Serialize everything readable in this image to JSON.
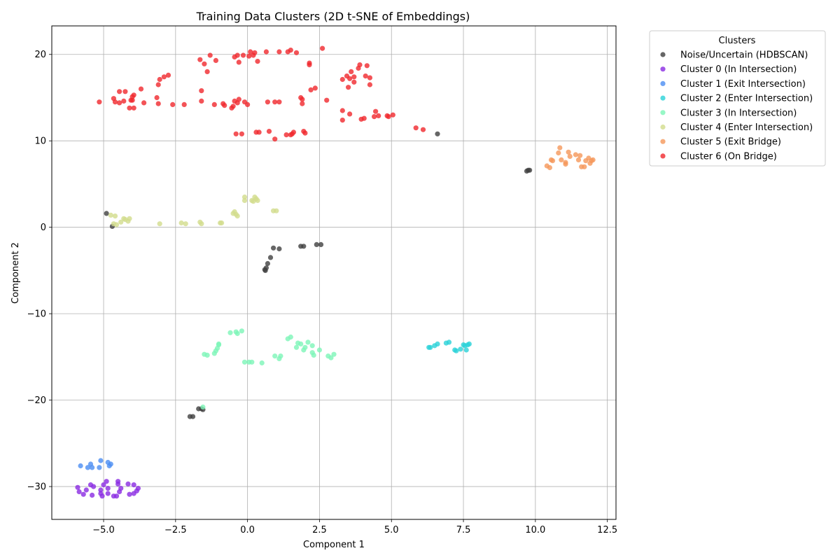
{
  "chart_data": {
    "type": "scatter",
    "title": "Training Data Clusters (2D t-SNE of Embeddings)",
    "xlabel": "Component 1",
    "ylabel": "Component 2",
    "xlim": [
      -6.8,
      12.8
    ],
    "ylim": [
      -33.8,
      23.3
    ],
    "x_ticks": [
      -5.0,
      -2.5,
      0.0,
      2.5,
      5.0,
      7.5,
      10.0,
      12.5
    ],
    "x_tick_labels": [
      "−5.0",
      "−2.5",
      "0.0",
      "2.5",
      "5.0",
      "7.5",
      "10.0",
      "12.5"
    ],
    "y_ticks": [
      -30,
      -20,
      -10,
      0,
      10,
      20
    ],
    "y_tick_labels": [
      "−30",
      "−20",
      "−10",
      "0",
      "10",
      "20"
    ],
    "grid": true,
    "legend": {
      "title": "Clusters",
      "placement": "outside-right-top"
    },
    "series": [
      {
        "name": "Noise/Uncertain (HDBSCAN)",
        "color": "#404040",
        "points": [
          [
            -4.9,
            1.6
          ],
          [
            -4.7,
            0.1
          ],
          [
            9.7,
            6.5
          ],
          [
            9.75,
            6.6
          ],
          [
            9.8,
            6.6
          ],
          [
            6.6,
            10.8
          ],
          [
            0.9,
            -2.4
          ],
          [
            1.1,
            -2.5
          ],
          [
            1.85,
            -2.2
          ],
          [
            1.95,
            -2.2
          ],
          [
            2.4,
            -2.0
          ],
          [
            2.55,
            -2.0
          ],
          [
            0.8,
            -3.5
          ],
          [
            0.7,
            -4.2
          ],
          [
            0.65,
            -4.7
          ],
          [
            0.62,
            -5.0
          ],
          [
            0.6,
            -4.9
          ],
          [
            -1.7,
            -21.0
          ],
          [
            -1.6,
            -21.0
          ],
          [
            -1.55,
            -21.1
          ],
          [
            -2.0,
            -21.9
          ],
          [
            -1.9,
            -21.9
          ]
        ]
      },
      {
        "name": "Cluster 0 (In Intersection)",
        "color": "#8a2be2",
        "points": [
          [
            -5.9,
            -30.1
          ],
          [
            -5.85,
            -30.6
          ],
          [
            -5.7,
            -30.9
          ],
          [
            -5.6,
            -30.4
          ],
          [
            -5.45,
            -29.8
          ],
          [
            -5.4,
            -31.0
          ],
          [
            -5.35,
            -30.0
          ],
          [
            -5.1,
            -30.4
          ],
          [
            -5.1,
            -30.8
          ],
          [
            -5.05,
            -31.1
          ],
          [
            -5.0,
            -29.8
          ],
          [
            -4.9,
            -29.4
          ],
          [
            -4.85,
            -30.8
          ],
          [
            -4.85,
            -30.2
          ],
          [
            -4.65,
            -31.1
          ],
          [
            -4.55,
            -31.1
          ],
          [
            -4.5,
            -29.4
          ],
          [
            -4.5,
            -29.7
          ],
          [
            -4.45,
            -30.6
          ],
          [
            -4.4,
            -30.2
          ],
          [
            -4.15,
            -29.7
          ],
          [
            -4.1,
            -30.9
          ],
          [
            -3.95,
            -29.8
          ],
          [
            -3.95,
            -30.8
          ],
          [
            -3.85,
            -30.5
          ],
          [
            -3.8,
            -30.2
          ]
        ]
      },
      {
        "name": "Cluster 1 (Exit Intersection)",
        "color": "#4b8df2",
        "points": [
          [
            -5.8,
            -27.6
          ],
          [
            -5.55,
            -27.8
          ],
          [
            -5.45,
            -27.4
          ],
          [
            -5.4,
            -27.8
          ],
          [
            -5.15,
            -27.8
          ],
          [
            -5.1,
            -27.0
          ],
          [
            -4.85,
            -27.2
          ],
          [
            -4.8,
            -27.6
          ],
          [
            -4.75,
            -27.4
          ]
        ]
      },
      {
        "name": "Cluster 2 (Enter Intersection)",
        "color": "#2ad2d8",
        "points": [
          [
            6.3,
            -13.9
          ],
          [
            6.35,
            -13.9
          ],
          [
            6.5,
            -13.7
          ],
          [
            6.6,
            -13.5
          ],
          [
            6.9,
            -13.4
          ],
          [
            7.0,
            -13.3
          ],
          [
            7.2,
            -14.2
          ],
          [
            7.25,
            -14.3
          ],
          [
            7.4,
            -14.1
          ],
          [
            7.5,
            -13.6
          ],
          [
            7.55,
            -13.7
          ],
          [
            7.6,
            -14.2
          ],
          [
            7.65,
            -13.6
          ],
          [
            7.7,
            -13.5
          ]
        ]
      },
      {
        "name": "Cluster 3 (In Intersection)",
        "color": "#7df5b8",
        "points": [
          [
            -0.6,
            -12.2
          ],
          [
            -0.4,
            -12.1
          ],
          [
            -0.35,
            -12.3
          ],
          [
            -0.2,
            -12.0
          ],
          [
            -1.0,
            -13.6
          ],
          [
            -1.0,
            -13.5
          ],
          [
            -1.05,
            -14.0
          ],
          [
            -1.1,
            -14.3
          ],
          [
            -1.15,
            -14.6
          ],
          [
            -1.4,
            -14.8
          ],
          [
            -1.5,
            -14.7
          ],
          [
            -0.1,
            -15.6
          ],
          [
            0.05,
            -15.6
          ],
          [
            0.15,
            -15.6
          ],
          [
            0.5,
            -15.7
          ],
          [
            0.95,
            -14.9
          ],
          [
            1.1,
            -15.2
          ],
          [
            1.15,
            -14.9
          ],
          [
            1.4,
            -12.9
          ],
          [
            1.5,
            -12.7
          ],
          [
            1.7,
            -13.9
          ],
          [
            1.75,
            -13.4
          ],
          [
            1.85,
            -13.5
          ],
          [
            1.95,
            -14.2
          ],
          [
            2.0,
            -13.9
          ],
          [
            2.1,
            -13.3
          ],
          [
            2.25,
            -13.7
          ],
          [
            2.25,
            -14.5
          ],
          [
            2.3,
            -14.8
          ],
          [
            2.5,
            -14.2
          ],
          [
            2.8,
            -14.9
          ],
          [
            2.9,
            -15.1
          ],
          [
            3.0,
            -14.7
          ],
          [
            -1.55,
            -20.8
          ]
        ]
      },
      {
        "name": "Cluster 4 (Enter Intersection)",
        "color": "#d2dc8c",
        "points": [
          [
            -4.75,
            1.4
          ],
          [
            -4.6,
            1.3
          ],
          [
            -4.65,
            0.4
          ],
          [
            -4.55,
            0.3
          ],
          [
            -4.4,
            0.6
          ],
          [
            -4.3,
            1.0
          ],
          [
            -4.25,
            0.9
          ],
          [
            -4.15,
            0.7
          ],
          [
            -4.1,
            1.0
          ],
          [
            -3.05,
            0.4
          ],
          [
            -2.3,
            0.5
          ],
          [
            -2.15,
            0.4
          ],
          [
            -1.65,
            0.6
          ],
          [
            -1.6,
            0.4
          ],
          [
            -0.95,
            0.5
          ],
          [
            -0.9,
            0.5
          ],
          [
            -0.5,
            1.6
          ],
          [
            -0.45,
            1.8
          ],
          [
            -0.4,
            1.5
          ],
          [
            -0.35,
            1.3
          ],
          [
            -0.1,
            3.1
          ],
          [
            -0.1,
            3.5
          ],
          [
            0.15,
            3.1
          ],
          [
            0.2,
            3.0
          ],
          [
            0.25,
            3.5
          ],
          [
            0.3,
            3.3
          ],
          [
            0.35,
            3.1
          ],
          [
            0.9,
            1.9
          ],
          [
            1.0,
            1.9
          ]
        ]
      },
      {
        "name": "Cluster 5 (Exit Bridge)",
        "color": "#f5975a",
        "points": [
          [
            10.4,
            7.1
          ],
          [
            10.5,
            6.9
          ],
          [
            10.55,
            7.8
          ],
          [
            10.6,
            7.7
          ],
          [
            10.8,
            8.6
          ],
          [
            10.85,
            9.2
          ],
          [
            10.9,
            7.8
          ],
          [
            11.05,
            7.5
          ],
          [
            11.05,
            7.3
          ],
          [
            11.15,
            8.7
          ],
          [
            11.2,
            8.2
          ],
          [
            11.4,
            8.4
          ],
          [
            11.5,
            7.8
          ],
          [
            11.55,
            8.3
          ],
          [
            11.6,
            7.0
          ],
          [
            11.7,
            7.0
          ],
          [
            11.75,
            7.7
          ],
          [
            11.85,
            8.0
          ],
          [
            11.9,
            7.4
          ],
          [
            11.95,
            7.7
          ],
          [
            12.0,
            7.8
          ]
        ]
      },
      {
        "name": "Cluster 6 (On Bridge)",
        "color": "#f0282d",
        "points": [
          [
            -5.15,
            14.5
          ],
          [
            -4.65,
            14.9
          ],
          [
            -4.6,
            14.5
          ],
          [
            -4.45,
            14.4
          ],
          [
            -4.45,
            15.7
          ],
          [
            -4.3,
            14.6
          ],
          [
            -4.25,
            15.7
          ],
          [
            -4.1,
            13.8
          ],
          [
            -4.05,
            14.7
          ],
          [
            -4.0,
            14.7
          ],
          [
            -4.0,
            15.1
          ],
          [
            -3.95,
            15.3
          ],
          [
            -3.95,
            13.8
          ],
          [
            -3.7,
            16.0
          ],
          [
            -3.6,
            14.4
          ],
          [
            -3.15,
            15.0
          ],
          [
            -3.1,
            16.5
          ],
          [
            -3.1,
            14.3
          ],
          [
            -3.05,
            17.1
          ],
          [
            -2.9,
            17.4
          ],
          [
            -2.75,
            17.6
          ],
          [
            -2.6,
            14.2
          ],
          [
            -2.2,
            14.2
          ],
          [
            -1.65,
            19.4
          ],
          [
            -1.6,
            15.8
          ],
          [
            -1.6,
            14.6
          ],
          [
            -1.5,
            18.9
          ],
          [
            -1.4,
            18.0
          ],
          [
            -1.3,
            19.9
          ],
          [
            -1.15,
            14.2
          ],
          [
            -1.1,
            19.3
          ],
          [
            -0.85,
            14.3
          ],
          [
            -0.8,
            14.1
          ],
          [
            -0.55,
            13.8
          ],
          [
            -0.5,
            14.0
          ],
          [
            -0.45,
            14.6
          ],
          [
            -0.45,
            19.7
          ],
          [
            -0.4,
            10.8
          ],
          [
            -0.35,
            19.9
          ],
          [
            -0.35,
            14.4
          ],
          [
            -0.3,
            14.8
          ],
          [
            -0.3,
            19.1
          ],
          [
            -0.2,
            10.8
          ],
          [
            -0.15,
            19.9
          ],
          [
            -0.1,
            14.5
          ],
          [
            0.0,
            14.2
          ],
          [
            0.05,
            19.8
          ],
          [
            0.1,
            20.3
          ],
          [
            0.2,
            19.9
          ],
          [
            0.25,
            20.2
          ],
          [
            0.3,
            11.0
          ],
          [
            0.35,
            19.2
          ],
          [
            0.4,
            11.0
          ],
          [
            0.65,
            20.3
          ],
          [
            0.7,
            14.5
          ],
          [
            0.75,
            11.1
          ],
          [
            0.95,
            10.2
          ],
          [
            0.95,
            14.5
          ],
          [
            1.1,
            14.5
          ],
          [
            1.1,
            20.3
          ],
          [
            1.35,
            10.7
          ],
          [
            1.4,
            20.3
          ],
          [
            1.5,
            10.7
          ],
          [
            1.5,
            20.5
          ],
          [
            1.55,
            10.8
          ],
          [
            1.6,
            11.0
          ],
          [
            1.7,
            20.2
          ],
          [
            1.85,
            15.0
          ],
          [
            1.9,
            14.8
          ],
          [
            1.9,
            14.3
          ],
          [
            1.95,
            11.1
          ],
          [
            2.0,
            10.9
          ],
          [
            2.15,
            19.0
          ],
          [
            2.15,
            18.8
          ],
          [
            2.2,
            15.9
          ],
          [
            2.35,
            16.1
          ],
          [
            2.6,
            20.7
          ],
          [
            2.75,
            14.7
          ],
          [
            3.3,
            17.1
          ],
          [
            3.3,
            13.5
          ],
          [
            3.3,
            12.4
          ],
          [
            3.45,
            17.5
          ],
          [
            3.5,
            16.2
          ],
          [
            3.55,
            17.2
          ],
          [
            3.55,
            13.1
          ],
          [
            3.6,
            18.0
          ],
          [
            3.7,
            16.8
          ],
          [
            3.7,
            17.4
          ],
          [
            3.85,
            18.4
          ],
          [
            3.9,
            18.8
          ],
          [
            3.95,
            12.5
          ],
          [
            4.05,
            12.6
          ],
          [
            4.1,
            17.5
          ],
          [
            4.15,
            18.7
          ],
          [
            4.25,
            16.5
          ],
          [
            4.25,
            17.3
          ],
          [
            4.4,
            12.8
          ],
          [
            4.45,
            13.4
          ],
          [
            4.55,
            12.9
          ],
          [
            4.85,
            12.9
          ],
          [
            4.9,
            12.8
          ],
          [
            5.05,
            13.0
          ],
          [
            5.85,
            11.5
          ],
          [
            6.1,
            11.3
          ]
        ]
      }
    ]
  }
}
